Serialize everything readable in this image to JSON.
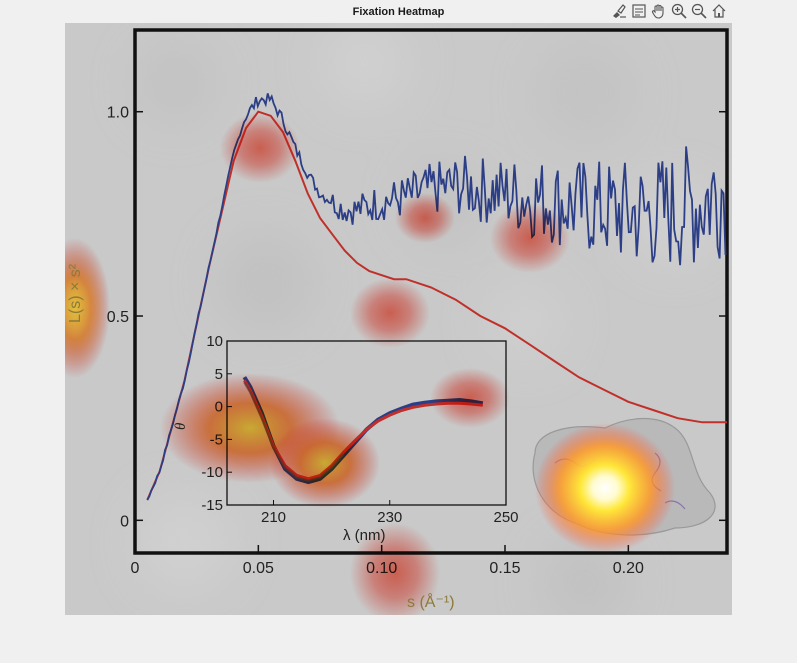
{
  "window": {
    "title": "Fixation Heatmap"
  },
  "toolbar": {
    "items": [
      {
        "name": "brush-icon"
      },
      {
        "name": "data-tips-icon"
      },
      {
        "name": "pan-hand-icon"
      },
      {
        "name": "zoom-in-icon"
      },
      {
        "name": "zoom-out-icon"
      },
      {
        "name": "home-icon"
      }
    ]
  },
  "chart_data": [
    {
      "type": "line",
      "xlabel": "s (Å⁻¹)",
      "ylabel": "L(s) × s²",
      "xlim": [
        0,
        0.24
      ],
      "ylim": [
        -0.08,
        1.2
      ],
      "x_ticks": [
        0,
        0.05,
        0.1,
        0.15,
        0.2
      ],
      "x_tick_labels": [
        "0",
        "0.05",
        "0.10",
        "0.15",
        "0.20"
      ],
      "y_ticks": [
        0,
        0.5,
        1.0
      ],
      "y_tick_labels": [
        "0",
        "0.5",
        "1.0"
      ],
      "series": [
        {
          "color": "#c0302a",
          "x": [
            0.005,
            0.01,
            0.02,
            0.03,
            0.04,
            0.045,
            0.05,
            0.055,
            0.06,
            0.065,
            0.07,
            0.075,
            0.08,
            0.085,
            0.09,
            0.095,
            0.1,
            0.105,
            0.11,
            0.12,
            0.13,
            0.14,
            0.15,
            0.16,
            0.17,
            0.18,
            0.19,
            0.2,
            0.21,
            0.22,
            0.23,
            0.24
          ],
          "y": [
            0.05,
            0.12,
            0.34,
            0.62,
            0.88,
            0.96,
            1.0,
            0.99,
            0.95,
            0.88,
            0.8,
            0.74,
            0.7,
            0.66,
            0.63,
            0.61,
            0.6,
            0.59,
            0.59,
            0.57,
            0.54,
            0.5,
            0.47,
            0.43,
            0.39,
            0.35,
            0.32,
            0.29,
            0.27,
            0.25,
            0.24,
            0.24
          ]
        },
        {
          "color": "#2c3f86",
          "x": [
            0.005,
            0.01,
            0.02,
            0.03,
            0.04,
            0.045,
            0.05,
            0.055,
            0.06,
            0.065,
            0.07,
            0.075,
            0.08,
            0.085,
            0.09,
            0.095,
            0.1,
            0.11,
            0.12,
            0.13,
            0.14,
            0.15,
            0.16,
            0.17,
            0.18,
            0.19,
            0.2,
            0.21,
            0.22,
            0.23,
            0.24
          ],
          "y": [
            0.05,
            0.12,
            0.34,
            0.62,
            0.9,
            0.99,
            1.03,
            1.03,
            0.98,
            0.91,
            0.85,
            0.8,
            0.78,
            0.76,
            0.76,
            0.77,
            0.78,
            0.79,
            0.81,
            0.82,
            0.81,
            0.8,
            0.79,
            0.78,
            0.77,
            0.76,
            0.75,
            0.75,
            0.76,
            0.78,
            0.82
          ],
          "noise": "increasing"
        }
      ]
    },
    {
      "type": "line",
      "inset": true,
      "xlabel": "λ (nm)",
      "ylabel": "θ",
      "xlim": [
        202,
        250
      ],
      "ylim": [
        -15,
        10
      ],
      "x_ticks": [
        210,
        230,
        250
      ],
      "x_tick_labels": [
        "210",
        "230",
        "250"
      ],
      "y_ticks": [
        10,
        5,
        0,
        -5,
        -10,
        -15
      ],
      "y_tick_labels": [
        "10",
        "5",
        "0",
        "-5",
        "-10",
        "-15"
      ],
      "series": [
        {
          "color": "#2c3f86",
          "x": [
            205,
            206,
            208,
            210,
            212,
            214,
            216,
            218,
            220,
            222,
            224,
            226,
            228,
            230,
            232,
            234,
            236,
            238,
            240,
            242,
            244,
            246
          ],
          "y": [
            4.5,
            3,
            -1,
            -6,
            -9.5,
            -11,
            -11.5,
            -11,
            -9.5,
            -7.5,
            -5.5,
            -3.5,
            -2,
            -1,
            -0.3,
            0.3,
            0.6,
            0.8,
            0.9,
            1,
            0.8,
            0.5
          ]
        },
        {
          "color": "#c0302a",
          "x": [
            205,
            206,
            208,
            210,
            212,
            214,
            216,
            218,
            220,
            222,
            224,
            226,
            228,
            230,
            232,
            234,
            236,
            238,
            240,
            242,
            244,
            246
          ],
          "y": [
            4,
            2.5,
            -1.5,
            -6,
            -9,
            -10.5,
            -11,
            -10.5,
            -9,
            -7,
            -5.2,
            -3.5,
            -2.2,
            -1.3,
            -0.6,
            -0.1,
            0.2,
            0.4,
            0.5,
            0.5,
            0.4,
            0.2
          ]
        }
      ]
    }
  ],
  "heatmap": {
    "hotspots": [
      {
        "intensity": 1.0,
        "color": "#ffffff"
      },
      {
        "intensity": 0.8,
        "color": "#ffee44"
      },
      {
        "intensity": 0.6,
        "color": "#ff8a2a"
      },
      {
        "intensity": 0.4,
        "color": "#ff4b3a"
      }
    ]
  }
}
